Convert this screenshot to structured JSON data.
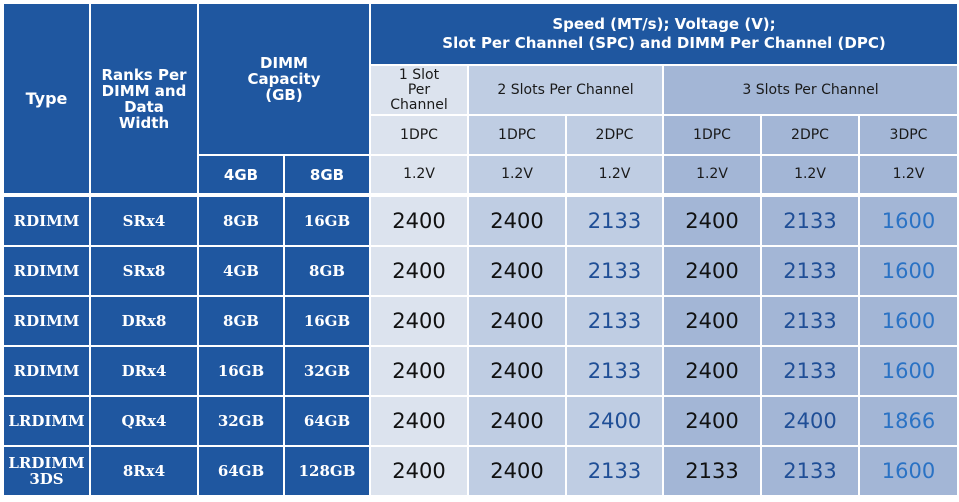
{
  "headers": {
    "type": "Type",
    "ranks": "Ranks Per DIMM and Data Width",
    "capacity": "DIMM Capacity (GB)",
    "cap_4gb": "4GB",
    "cap_8gb": "8GB",
    "speed_line1": "Speed (MT/s); Voltage (V);",
    "speed_line2": "Slot Per Channel (SPC) and DIMM Per Channel (DPC)",
    "slot1": "1 Slot Per Channel",
    "slot2": "2 Slots Per Channel",
    "slot3": "3 Slots Per Channel",
    "dpc": [
      "1DPC",
      "1DPC",
      "2DPC",
      "1DPC",
      "2DPC",
      "3DPC"
    ],
    "voltage": [
      "1.2V",
      "1.2V",
      "1.2V",
      "1.2V",
      "1.2V",
      "1.2V"
    ]
  },
  "rows": [
    {
      "type": "RDIMM",
      "ranks": "SRx4",
      "cap4": "8GB",
      "cap8": "16GB",
      "speeds": [
        "2400",
        "2400",
        "2133",
        "2400",
        "2133",
        "1600"
      ]
    },
    {
      "type": "RDIMM",
      "ranks": "SRx8",
      "cap4": "4GB",
      "cap8": "8GB",
      "speeds": [
        "2400",
        "2400",
        "2133",
        "2400",
        "2133",
        "1600"
      ]
    },
    {
      "type": "RDIMM",
      "ranks": "DRx8",
      "cap4": "8GB",
      "cap8": "16GB",
      "speeds": [
        "2400",
        "2400",
        "2133",
        "2400",
        "2133",
        "1600"
      ]
    },
    {
      "type": "RDIMM",
      "ranks": "DRx4",
      "cap4": "16GB",
      "cap8": "32GB",
      "speeds": [
        "2400",
        "2400",
        "2133",
        "2400",
        "2133",
        "1600"
      ]
    },
    {
      "type": "LRDIMM",
      "ranks": "QRx4",
      "cap4": "32GB",
      "cap8": "64GB",
      "speeds": [
        "2400",
        "2400",
        "2400",
        "2400",
        "2400",
        "1866"
      ]
    },
    {
      "type": "LRDIMM 3DS",
      "ranks": "8Rx4",
      "cap4": "64GB",
      "cap8": "128GB",
      "speeds": [
        "2400",
        "2400",
        "2133",
        "2133",
        "2133",
        "1600"
      ]
    }
  ],
  "colors": {
    "header_bg": "#1f57a0",
    "col_1slot": "#dce3ee",
    "col_2slot": "#bfcde3",
    "col_3slot": "#a3b6d6",
    "speed_2400": "#111111",
    "speed_2133": "#1f4e96",
    "speed_low": "#2a72c4"
  }
}
